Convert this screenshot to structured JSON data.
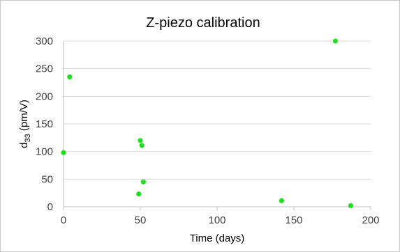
{
  "chart_data": {
    "type": "scatter",
    "title": "Z-piezo calibration",
    "xlabel": "Time (days)",
    "ylabel": {
      "prefix": "d",
      "subscript": "33",
      "suffix": " (pm/V)"
    },
    "xlim": [
      0,
      200
    ],
    "ylim": [
      0,
      300
    ],
    "xticks": [
      0,
      50,
      100,
      150,
      200
    ],
    "yticks": [
      0,
      50,
      100,
      150,
      200,
      250,
      300
    ],
    "grid": {
      "horizontal": true,
      "vertical": false
    },
    "legend": "none",
    "marker_color": "#22dd22",
    "points": [
      {
        "x": 0,
        "y": 98
      },
      {
        "x": 4,
        "y": 235
      },
      {
        "x": 49,
        "y": 23
      },
      {
        "x": 50,
        "y": 120
      },
      {
        "x": 51,
        "y": 111
      },
      {
        "x": 52,
        "y": 45
      },
      {
        "x": 142,
        "y": 11
      },
      {
        "x": 177,
        "y": 300
      },
      {
        "x": 187,
        "y": 2
      }
    ]
  }
}
